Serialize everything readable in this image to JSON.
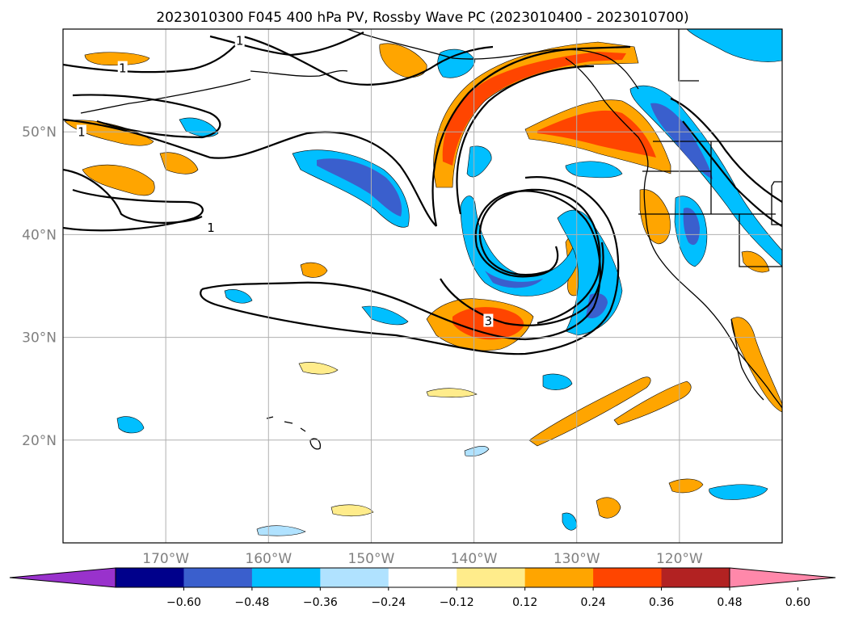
{
  "title": "2023010300 F045 400 hPa PV, Rossby Wave PC (2023010400 - 2023010700)",
  "map": {
    "extent": {
      "lon_min": -180,
      "lon_max": -110,
      "lat_min": 10,
      "lat_max": 60
    },
    "lat_ticks": [
      {
        "value": 20,
        "label": "20°N"
      },
      {
        "value": 30,
        "label": "30°N"
      },
      {
        "value": 40,
        "label": "40°N"
      },
      {
        "value": 50,
        "label": "50°N"
      }
    ],
    "lon_ticks": [
      {
        "value": -170,
        "label": "170°W"
      },
      {
        "value": -160,
        "label": "160°W"
      },
      {
        "value": -150,
        "label": "150°W"
      },
      {
        "value": -140,
        "label": "140°W"
      },
      {
        "value": -130,
        "label": "130°W"
      },
      {
        "value": -120,
        "label": "120°W"
      }
    ],
    "grid_color": "#b0b0b0",
    "pv_contour_labels": [
      {
        "text": "1",
        "lon": -162.8,
        "lat": 58.8
      },
      {
        "text": "1",
        "lon": -174.2,
        "lat": 56.1
      },
      {
        "text": "1",
        "lon": -178.2,
        "lat": 49.9
      },
      {
        "text": "1",
        "lon": -165.6,
        "lat": 40.6
      },
      {
        "text": "3",
        "lon": -138.6,
        "lat": 31.5
      }
    ]
  },
  "colorbar": {
    "colors": [
      "#9932cc",
      "#00008b",
      "#3a5fcd",
      "#00bfff",
      "#b0e2ff",
      "#ffffff",
      "#ffec8b",
      "#ffa500",
      "#ff4500",
      "#b22222",
      "#ff88aa"
    ],
    "ticks": [
      "-0.60",
      "-0.48",
      "-0.36",
      "-0.24",
      "-0.12",
      "0.12",
      "0.24",
      "0.36",
      "0.48",
      "0.60"
    ],
    "tick_labels": [
      "−0.60",
      "−0.48",
      "−0.36",
      "−0.24",
      "−0.12",
      "0.12",
      "0.24",
      "0.36",
      "0.48",
      "0.60"
    ]
  },
  "legend_colors": {
    "neg1": "#b0e2ff",
    "neg2": "#00bfff",
    "neg3": "#3a5fcd",
    "pos1": "#ffec8b",
    "pos2": "#ffa500",
    "pos3": "#ff4500"
  }
}
